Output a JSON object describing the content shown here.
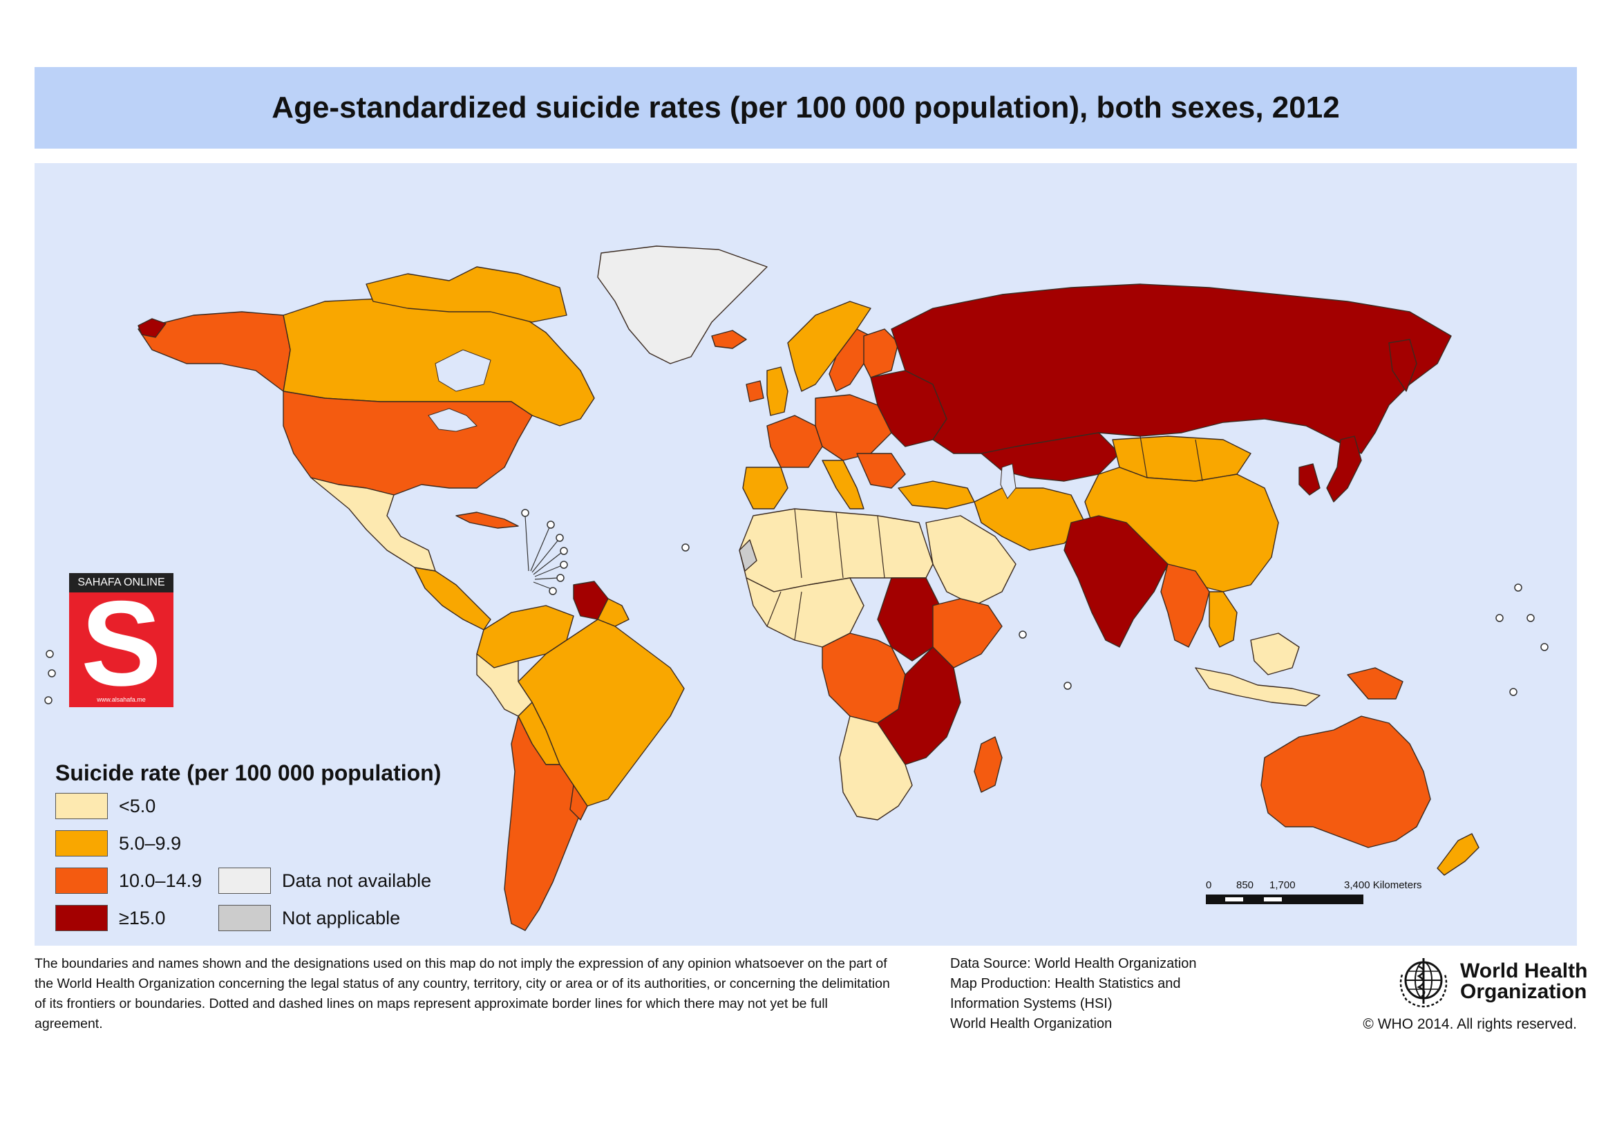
{
  "title": "Age-standardized suicide rates (per 100 000 population), both sexes, 2012",
  "legend": {
    "title": "Suicide rate (per 100 000 population)",
    "items": [
      {
        "label": "<5.0",
        "color": "#fde9b0"
      },
      {
        "label": "5.0–9.9",
        "color": "#f9a700"
      },
      {
        "label": "10.0–14.9",
        "color": "#f45b10"
      },
      {
        "label": "≥15.0",
        "color": "#a30000"
      },
      {
        "label": "Data not available",
        "color": "#eeeeee"
      },
      {
        "label": "Not applicable",
        "color": "#cccccc"
      }
    ]
  },
  "watermark": {
    "header": "SAHAFA ONLINE",
    "letter": "S",
    "url": "www.alsahafa.me"
  },
  "scale_bar": {
    "labels": [
      "0",
      "850",
      "1,700",
      "3,400 Kilometers"
    ]
  },
  "disclaimer": "The boundaries and names shown and the designations used on this map do not imply the expression of any opinion whatsoever on the part of the World Health Organization concerning the legal status of any country, territory, city or area or of its authorities, or concerning the delimitation of its frontiers or boundaries. Dotted and dashed lines on maps represent approximate border lines for which there may not yet be full agreement.",
  "source": {
    "line1": "Data Source: World Health Organization",
    "line2": "Map Production: Health Statistics and",
    "line3": "Information Systems (HSI)",
    "line4": "World Health Organization"
  },
  "who": {
    "name_line1": "World Health",
    "name_line2": "Organization",
    "copyright": "© WHO 2014. All rights reserved."
  }
}
